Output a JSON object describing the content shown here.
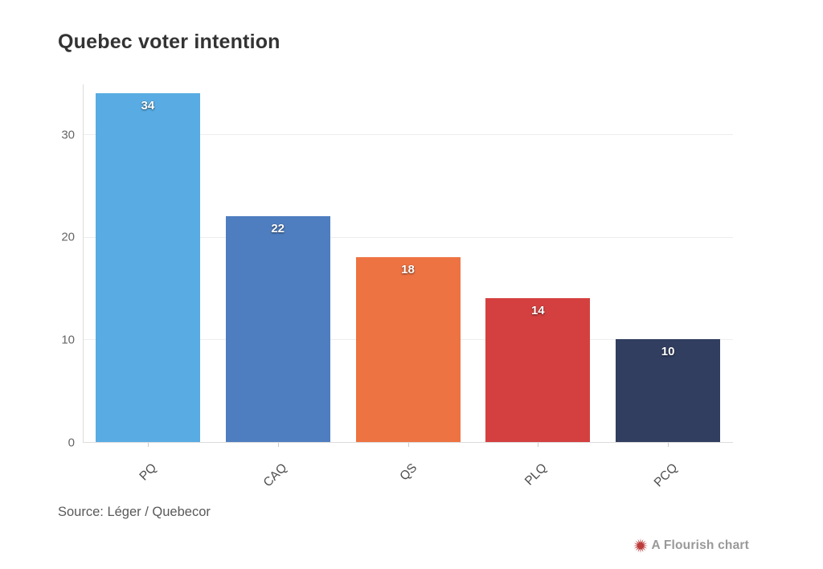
{
  "header": {
    "title": "Quebec voter intention"
  },
  "chart_data": {
    "type": "bar",
    "categories": [
      "PQ",
      "CAQ",
      "QS",
      "PLQ",
      "PCQ"
    ],
    "values": [
      34,
      22,
      18,
      14,
      10
    ],
    "bar_colors": [
      "#58ace3",
      "#4f7ec0",
      "#ee7342",
      "#d4403f",
      "#313e5f"
    ],
    "title": "Quebec voter intention",
    "xlabel": "",
    "ylabel": "",
    "y_ticks": [
      0,
      10,
      20,
      30
    ],
    "ylim": [
      0,
      35
    ],
    "grid": true,
    "legend": "none",
    "value_labels_shown": true,
    "x_label_rotation_deg": -45
  },
  "footer": {
    "source": "Source: Léger / Quebecor",
    "credit": "A Flourish chart"
  },
  "colors": {
    "title_text": "#333333",
    "tick_text": "#666666",
    "category_text": "#4d4d4d",
    "gridline": "#ededed",
    "axis_line": "#dcdcdc",
    "source_text": "#595959",
    "credit_text": "#999999",
    "credit_icon": "#bc3b3b"
  },
  "icons": {
    "credit_icon": "flourish-burst-icon"
  }
}
